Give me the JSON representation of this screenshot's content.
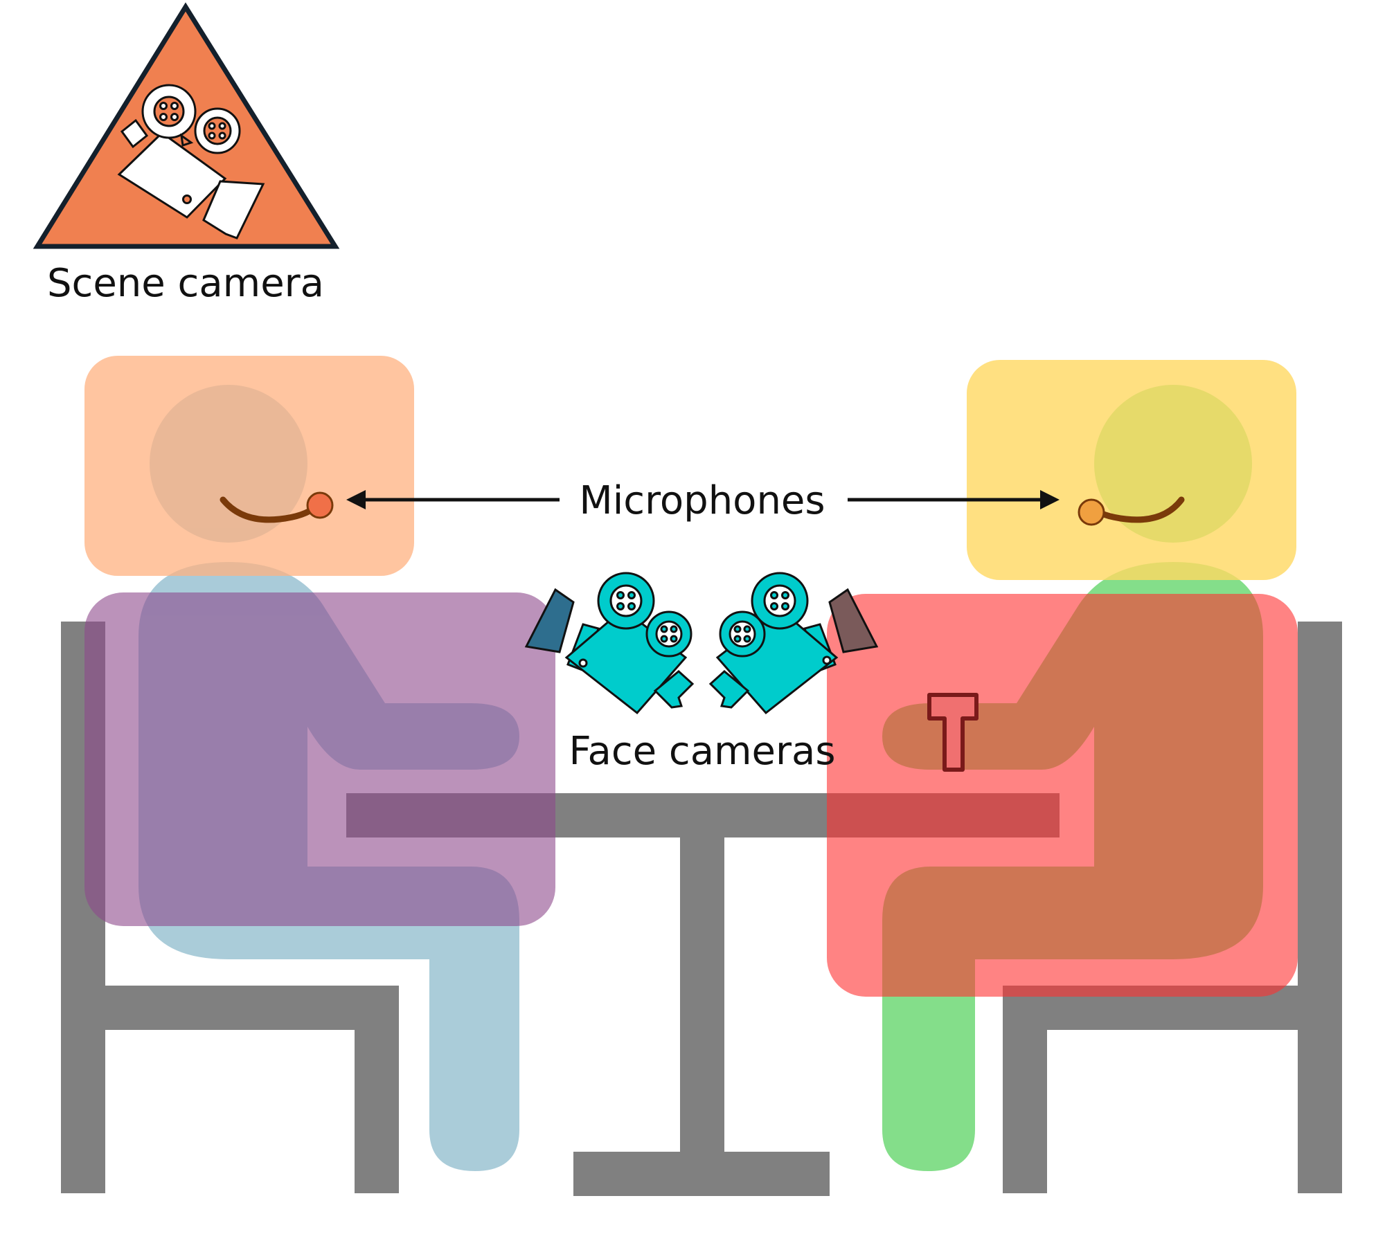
{
  "labels": {
    "scene_camera": "Scene camera",
    "microphones": "Microphones",
    "face_cameras": "Face cameras"
  },
  "colors": {
    "scene_camera_fill": "#F08050",
    "scene_camera_stroke": "#14202C",
    "face_camera_fill": "#00CCCC",
    "furniture": "#808080",
    "person_left_body": "#A7CAD8",
    "person_right_body": "#84DE8A",
    "person_left_head_box": "#FFB280",
    "person_right_head_box": "#FFE080",
    "person_left_body_box": "#8E4A8C",
    "person_right_body_box": "#FF3030",
    "mic_left": "#F07048",
    "mic_right": "#F0A040",
    "mic_boom": "#7A3A0A",
    "object": "#F07070"
  },
  "icons": [
    "scene-camera-icon",
    "face-camera-icon",
    "microphone-icon",
    "arrow-icon"
  ]
}
